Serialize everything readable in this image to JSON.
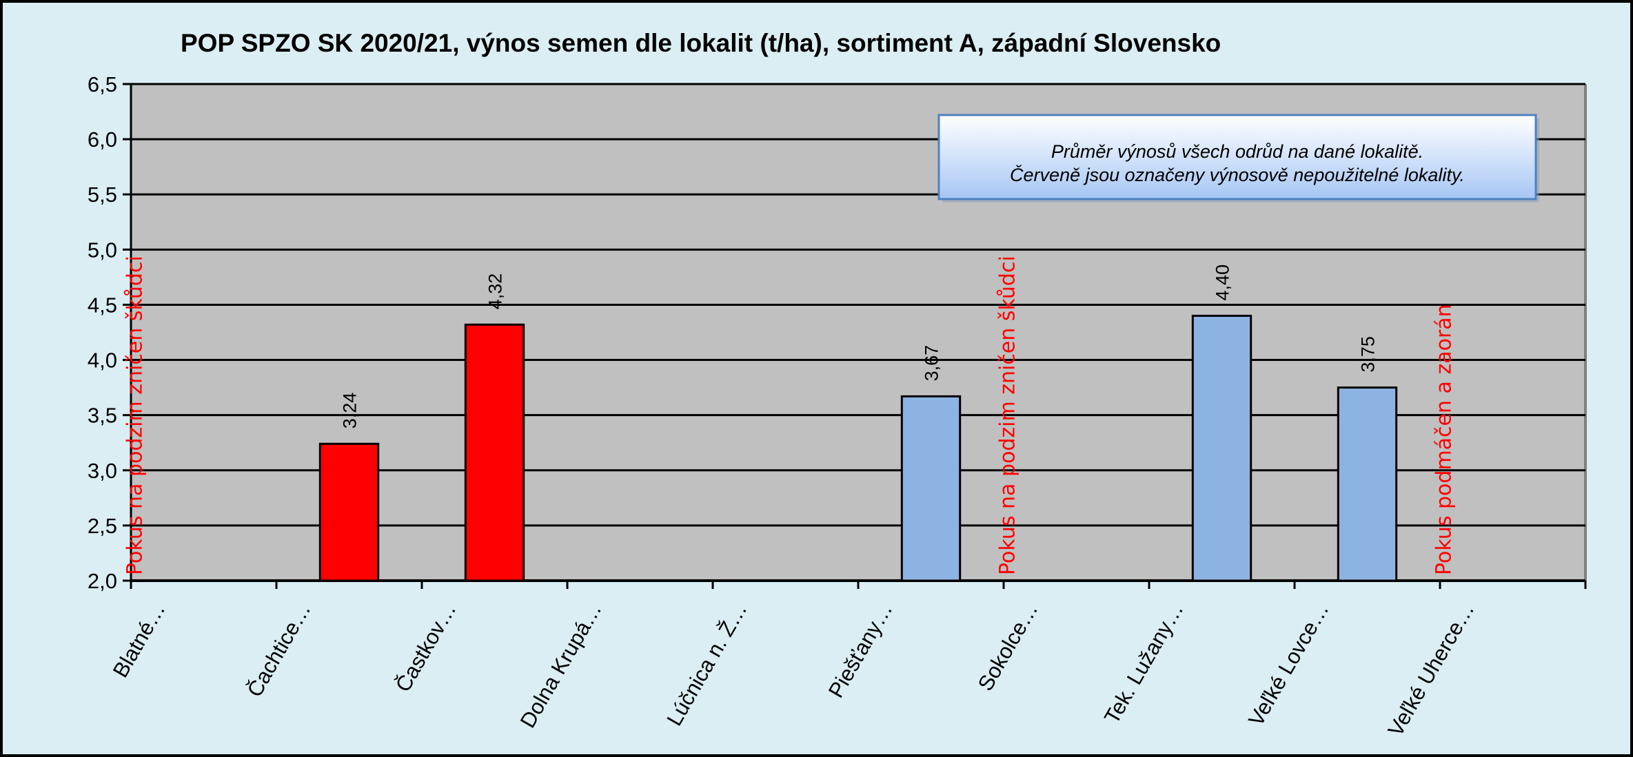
{
  "chart_data": {
    "type": "bar",
    "title": "POP SPZO SK 2020/21, výnos semen dle lokalit (t/ha), sortiment A, západní Slovensko",
    "xlabel": "",
    "ylabel": "",
    "ylim": [
      2.0,
      6.5
    ],
    "yticks": [
      "2,0",
      "2,5",
      "3,0",
      "3,5",
      "4,0",
      "4,5",
      "5,0",
      "5,5",
      "6,0",
      "6,5"
    ],
    "grid": true,
    "categories": [
      "Blatné…",
      "Čachtice…",
      "Častkov…",
      "Dolna Krupá…",
      "Lúčnica n. Ž…",
      "Piešťany…",
      "Sokolce…",
      "Tek. Lužany…",
      "Veľké Lovce…",
      "Veľké Uherce…"
    ],
    "values": [
      null,
      3.24,
      4.32,
      null,
      null,
      3.67,
      null,
      4.4,
      3.75,
      null
    ],
    "value_labels": [
      "",
      "3,24",
      "4,32",
      "",
      "",
      "3,67",
      "",
      "4,40",
      "3,75",
      ""
    ],
    "bar_colors": [
      "#ff0000",
      "#ff0000",
      "#ff0000",
      "#8db3e2",
      "#8db3e2",
      "#8db3e2",
      "#8db3e2",
      "#8db3e2",
      "#8db3e2",
      "#8db3e2"
    ],
    "notes": [
      "Pokus na podzim zničen škůdci",
      "",
      "",
      "",
      "",
      "",
      "Pokus na podzim zničen škůdci",
      "",
      "",
      "Pokus podmáčen a zaorán"
    ],
    "annotation_lines": [
      "Průměr výnosů všech odrůd na dané lokalitě.",
      "Červeně jsou označeny výnosově nepoužitelné lokality."
    ],
    "colors": {
      "background": "#daeef3",
      "plot_area": "#c0c0c0",
      "gridline": "#000000",
      "note_text": "#ff0000"
    }
  }
}
